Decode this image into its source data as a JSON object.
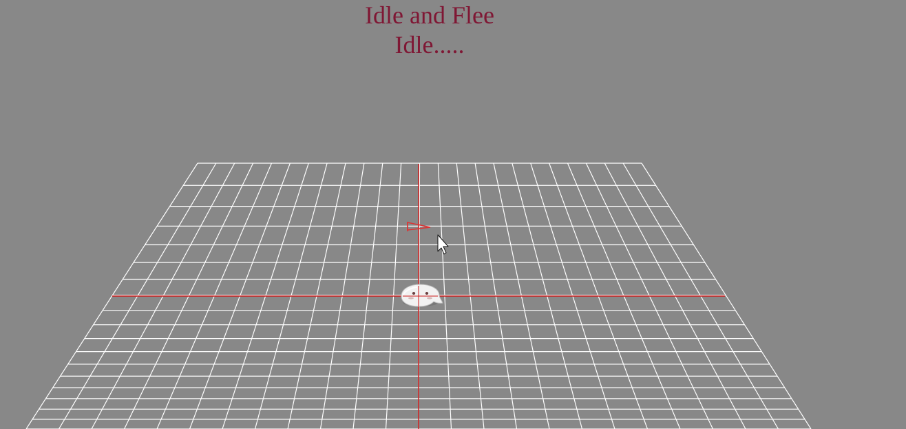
{
  "hud": {
    "title": "Idle and Flee",
    "status": "Idle....."
  },
  "scene": {
    "floor_grid": {
      "rows": 18,
      "cols": 24
    },
    "icons": {
      "target": "flag-target-icon",
      "agent": "ghost-agent-icon",
      "cursor": "mouse-pointer-icon"
    },
    "colors": {
      "background": "#888888",
      "grid": "#ffffff",
      "axes": "#cc1a1a",
      "text": "#7f1734"
    }
  }
}
